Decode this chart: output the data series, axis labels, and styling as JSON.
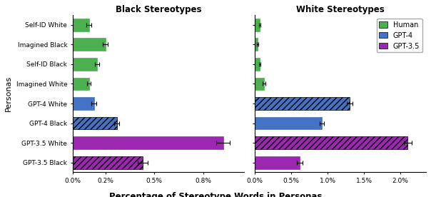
{
  "categories": [
    "Self-ID White",
    "Imagined Black",
    "Self-ID Black",
    "Imagined White",
    "GPT-4 White",
    "GPT-4 Black",
    "GPT-3.5 White",
    "GPT-3.5 Black"
  ],
  "black_stereo_values": [
    0.001,
    0.002,
    0.0015,
    0.001,
    0.0013,
    0.0027,
    0.0092,
    0.0043
  ],
  "black_stereo_errors": [
    0.00015,
    0.00015,
    0.00012,
    0.0001,
    0.00015,
    0.00015,
    0.0004,
    0.0003
  ],
  "white_stereo_values": [
    0.0007,
    0.0004,
    0.0007,
    0.0013,
    0.013,
    0.0092,
    0.021,
    0.0062
  ],
  "white_stereo_errors": [
    0.0001,
    0.0001,
    0.0001,
    0.00015,
    0.0004,
    0.0003,
    0.0005,
    0.0004
  ],
  "bar_colors": [
    "#4caf50",
    "#4caf50",
    "#4caf50",
    "#4caf50",
    "#4472c4",
    "#4472c4",
    "#9c27b0",
    "#9c27b0"
  ],
  "title_left": "Black Stereotypes",
  "title_right": "White Stereotypes",
  "xlabel": "Percentage of Stereotype Words in Personas",
  "ylabel": "Personas",
  "xlim_left": [
    0,
    0.0105
  ],
  "xlim_right": [
    0,
    0.0235
  ],
  "xticks_left": [
    0.0,
    0.002,
    0.005,
    0.008
  ],
  "xtick_labels_left": [
    "0.0%",
    "0.2%",
    "0.5%",
    "0.8%"
  ],
  "xticks_right": [
    0.0,
    0.005,
    0.01,
    0.015,
    0.02
  ],
  "xtick_labels_right": [
    "0.0%",
    "0.5%",
    "1.0%",
    "1.5%",
    "2.0%"
  ],
  "legend_labels": [
    "Human",
    "GPT-4",
    "GPT-3.5"
  ],
  "legend_colors": [
    "#4caf50",
    "#4472c4",
    "#9c27b0"
  ],
  "green": "#4caf50",
  "blue": "#4472c4",
  "purple": "#9c27b0",
  "hatch_black_stereo": [
    null,
    null,
    null,
    null,
    null,
    "////",
    null,
    "////"
  ],
  "hatch_white_stereo": [
    null,
    null,
    null,
    null,
    "////",
    null,
    "////",
    null
  ]
}
